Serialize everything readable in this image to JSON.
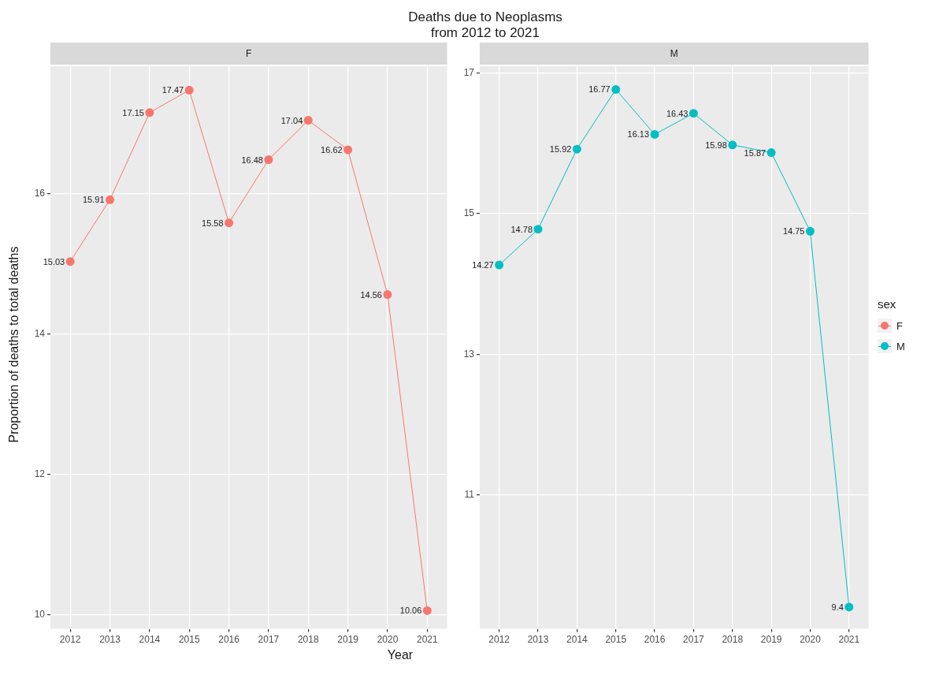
{
  "chart_data": [
    {
      "type": "line",
      "title": "Deaths due to Neoplasms\nfrom 2012 to 2021",
      "subtitle": "F",
      "xlabel": "Year",
      "ylabel": "Proportion of deaths to total deaths",
      "categories": [
        "2012",
        "2013",
        "2014",
        "2015",
        "2016",
        "2017",
        "2018",
        "2019",
        "2020",
        "2021"
      ],
      "series": [
        {
          "name": "F",
          "color": "#f8766d",
          "values": [
            15.03,
            15.91,
            17.15,
            17.47,
            15.58,
            16.48,
            17.04,
            16.62,
            14.56,
            10.06
          ]
        }
      ],
      "ylim": [
        9.8,
        17.81
      ],
      "yticks": [
        10,
        12,
        14,
        16
      ],
      "grid": true,
      "marker": "circle",
      "data_labels": true
    },
    {
      "type": "line",
      "subtitle": "M",
      "categories": [
        "2012",
        "2013",
        "2014",
        "2015",
        "2016",
        "2017",
        "2018",
        "2019",
        "2020",
        "2021"
      ],
      "series": [
        {
          "name": "M",
          "color": "#00bfc4",
          "values": [
            14.27,
            14.78,
            15.92,
            16.77,
            16.13,
            16.43,
            15.98,
            15.87,
            14.75,
            9.4
          ]
        }
      ],
      "ylim": [
        9.09,
        17.1
      ],
      "yticks": [
        11,
        13,
        15,
        17
      ],
      "grid": true,
      "marker": "circle",
      "data_labels": true,
      "legend": "right",
      "legend_title": "sex"
    }
  ]
}
